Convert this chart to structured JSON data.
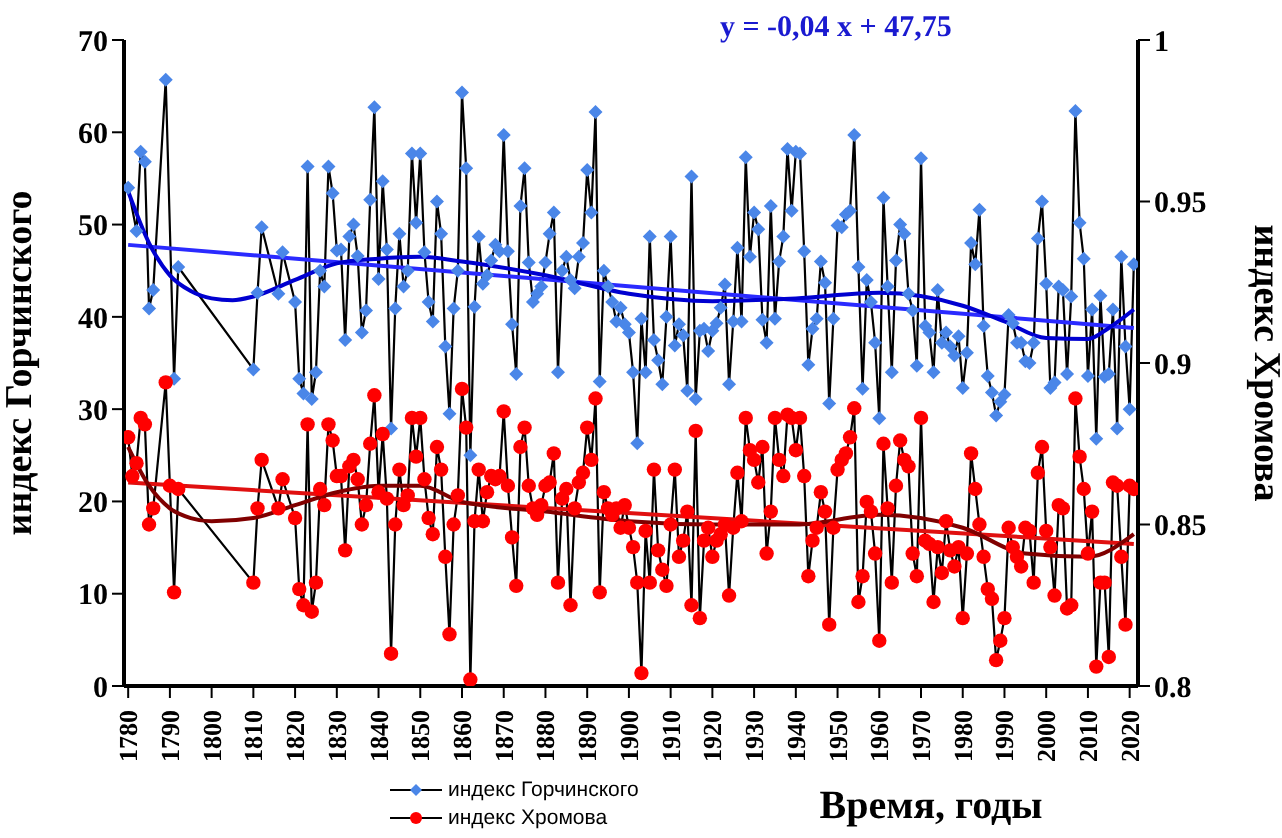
{
  "chart_data": {
    "type": "line",
    "xlabel": "Время, годы",
    "ylabel": "индекс Горчинского",
    "y2label": "индекс Хромова",
    "annotations": [
      "y = -0,04 x + 47,75"
    ],
    "legend": "bottom",
    "grid": false,
    "xlim": [
      1779,
      2022
    ],
    "xticks": [
      1780,
      1790,
      1800,
      1810,
      1820,
      1830,
      1840,
      1850,
      1860,
      1870,
      1880,
      1890,
      1900,
      1910,
      1920,
      1930,
      1940,
      1950,
      1960,
      1970,
      1980,
      1990,
      2000,
      2010,
      2020
    ],
    "ylim": [
      0,
      70
    ],
    "yticks": [
      0,
      10,
      20,
      30,
      40,
      50,
      60,
      70
    ],
    "y2lim": [
      0.8,
      1
    ],
    "y2ticks": [
      0.8,
      0.85,
      0.9,
      0.95,
      1
    ],
    "x": [
      1780,
      1781,
      1782,
      1783,
      1784,
      1785,
      1786,
      1789,
      1790,
      1791,
      1792,
      1810,
      1811,
      1812,
      1816,
      1817,
      1820,
      1821,
      1822,
      1823,
      1824,
      1825,
      1826,
      1827,
      1828,
      1829,
      1830,
      1831,
      1832,
      1833,
      1834,
      1835,
      1836,
      1837,
      1838,
      1839,
      1840,
      1841,
      1842,
      1843,
      1844,
      1845,
      1846,
      1847,
      1848,
      1849,
      1850,
      1851,
      1852,
      1853,
      1854,
      1855,
      1856,
      1857,
      1858,
      1859,
      1860,
      1861,
      1862,
      1863,
      1864,
      1865,
      1866,
      1867,
      1868,
      1869,
      1870,
      1871,
      1872,
      1873,
      1874,
      1875,
      1876,
      1877,
      1878,
      1879,
      1880,
      1881,
      1882,
      1883,
      1884,
      1885,
      1886,
      1887,
      1888,
      1889,
      1890,
      1891,
      1892,
      1893,
      1894,
      1895,
      1896,
      1897,
      1898,
      1899,
      1900,
      1901,
      1902,
      1903,
      1904,
      1905,
      1906,
      1907,
      1908,
      1909,
      1910,
      1911,
      1912,
      1913,
      1914,
      1915,
      1916,
      1917,
      1918,
      1919,
      1920,
      1921,
      1922,
      1923,
      1924,
      1925,
      1926,
      1927,
      1928,
      1929,
      1930,
      1931,
      1932,
      1933,
      1934,
      1935,
      1936,
      1937,
      1938,
      1939,
      1940,
      1941,
      1942,
      1943,
      1944,
      1945,
      1946,
      1947,
      1948,
      1949,
      1950,
      1951,
      1952,
      1953,
      1954,
      1955,
      1956,
      1957,
      1958,
      1959,
      1960,
      1961,
      1962,
      1963,
      1964,
      1965,
      1966,
      1967,
      1968,
      1969,
      1970,
      1971,
      1972,
      1973,
      1974,
      1975,
      1976,
      1977,
      1978,
      1979,
      1980,
      1981,
      1982,
      1983,
      1984,
      1985,
      1986,
      1987,
      1988,
      1989,
      1990,
      1991,
      1992,
      1993,
      1994,
      1995,
      1996,
      1997,
      1998,
      1999,
      2000,
      2001,
      2002,
      2003,
      2004,
      2005,
      2006,
      2007,
      2008,
      2009,
      2010,
      2011,
      2012,
      2013,
      2014,
      2015,
      2016,
      2017,
      2018,
      2019,
      2020,
      2021
    ],
    "series": [
      {
        "name": "индекс Горчинского",
        "color": "#4a86e8",
        "marker": "diamond",
        "values": [
          54,
          null,
          49.3,
          57.9,
          56.8,
          40.9,
          42.9,
          65.7,
          null,
          33.3,
          45.4,
          34.3,
          42.6,
          49.7,
          42.5,
          47,
          41.6,
          33.3,
          31.7,
          56.3,
          31.1,
          34,
          45,
          43.3,
          56.3,
          53.4,
          47.2,
          47.3,
          37.5,
          48.7,
          50,
          46.6,
          38.3,
          40.7,
          52.7,
          62.7,
          44.1,
          54.7,
          47.3,
          27.9,
          40.9,
          49,
          43.3,
          45,
          57.7,
          50.2,
          57.7,
          47,
          41.6,
          39.5,
          52.5,
          49,
          36.8,
          29.5,
          40.9,
          45,
          64.3,
          56.1,
          25,
          41.1,
          48.7,
          43.6,
          44.5,
          46.1,
          47.8,
          47.1,
          59.7,
          47.1,
          39.2,
          33.8,
          52,
          56.1,
          45.9,
          41.6,
          42.5,
          43.3,
          45.9,
          49,
          51.3,
          34,
          45,
          46.5,
          44,
          43.1,
          46.5,
          48,
          55.9,
          51.3,
          62.2,
          33,
          45,
          43.3,
          41.6,
          39.5,
          41,
          39.2,
          38.3,
          34,
          26.3,
          39.8,
          34,
          48.7,
          37.5,
          35.3,
          32.7,
          40,
          48.7,
          36.9,
          39.2,
          38,
          32,
          55.2,
          31.1,
          38.5,
          38.7,
          36.3,
          38.5,
          39.3,
          41,
          43.5,
          32.7,
          39.5,
          47.5,
          39.5,
          57.3,
          46.5,
          51.3,
          49.5,
          39.7,
          37.2,
          52,
          39.8,
          46,
          48.7,
          58.2,
          51.5,
          57.9,
          57.7,
          47.1,
          34.8,
          38.7,
          39.8,
          46,
          43.7,
          30.6,
          39.8,
          49.9,
          49.7,
          51.1,
          51.5,
          59.7,
          45.4,
          32.2,
          44,
          41.6,
          37.2,
          29,
          52.9,
          43.3,
          34,
          46.1,
          50,
          49,
          42.5,
          40.7,
          34.7,
          57.2,
          39,
          38.3,
          34,
          42.9,
          37.2,
          38.3,
          36.8,
          35.8,
          37.9,
          32.3,
          36.1,
          48,
          45.7,
          51.6,
          39,
          33.6,
          31.8,
          29.3,
          30.8,
          31.6,
          40.2,
          39.3,
          37.2,
          37.2,
          35.2,
          35,
          37.2,
          48.5,
          52.5,
          43.6,
          32.3,
          32.9,
          43.3,
          42.9,
          33.8,
          42.2,
          62.3,
          50.2,
          46.3,
          33.6,
          40.8,
          26.8,
          42.3,
          33.5,
          33.8,
          40.8,
          27.9,
          46.5,
          36.8,
          30,
          45.7
        ]
      },
      {
        "name": "индекс Хромова",
        "color": "#ff0000",
        "marker": "circle",
        "axis": "y2",
        "values": [
          0.877,
          0.865,
          0.869,
          0.883,
          0.881,
          0.85,
          0.855,
          0.894,
          0.862,
          0.829,
          0.861,
          0.832,
          0.855,
          0.87,
          0.855,
          0.864,
          0.852,
          0.83,
          0.825,
          0.881,
          0.823,
          0.832,
          0.861,
          0.856,
          0.881,
          0.876,
          0.865,
          0.865,
          0.842,
          0.868,
          0.87,
          0.864,
          0.85,
          0.856,
          0.875,
          0.89,
          0.86,
          0.878,
          0.858,
          0.81,
          0.85,
          0.867,
          0.856,
          0.859,
          0.883,
          0.871,
          0.883,
          0.864,
          0.852,
          0.847,
          0.874,
          0.867,
          0.84,
          0.816,
          0.85,
          0.859,
          0.892,
          0.88,
          0.802,
          0.851,
          0.867,
          0.851,
          0.86,
          0.865,
          0.864,
          0.865,
          0.885,
          0.862,
          0.846,
          0.831,
          0.874,
          0.88,
          0.862,
          0.855,
          0.853,
          0.856,
          0.862,
          0.863,
          0.872,
          0.832,
          0.858,
          0.861,
          0.825,
          0.855,
          0.863,
          0.866,
          0.88,
          0.87,
          0.889,
          0.829,
          0.86,
          0.855,
          0.853,
          0.855,
          0.849,
          0.856,
          0.849,
          0.843,
          0.832,
          0.804,
          0.848,
          0.832,
          0.867,
          0.842,
          0.836,
          0.831,
          0.85,
          0.867,
          0.84,
          0.845,
          0.854,
          0.825,
          0.879,
          0.821,
          0.845,
          0.849,
          0.84,
          0.845,
          0.847,
          0.85,
          0.828,
          0.849,
          0.866,
          0.851,
          0.883,
          0.873,
          0.87,
          0.863,
          0.874,
          0.841,
          0.854,
          0.883,
          0.87,
          0.865,
          0.884,
          0.883,
          0.873,
          0.883,
          0.865,
          0.834,
          0.845,
          0.849,
          0.86,
          0.854,
          0.819,
          0.849,
          0.867,
          0.87,
          0.872,
          0.877,
          0.886,
          0.826,
          0.834,
          0.857,
          0.854,
          0.841,
          0.814,
          0.875,
          0.855,
          0.832,
          0.862,
          0.876,
          0.87,
          0.868,
          0.841,
          0.834,
          0.883,
          0.845,
          0.844,
          0.826,
          0.843,
          0.835,
          0.851,
          0.842,
          0.837,
          0.843,
          0.821,
          0.841,
          0.872,
          0.861,
          0.85,
          0.84,
          0.83,
          0.827,
          0.808,
          0.814,
          0.821,
          0.849,
          0.843,
          0.84,
          0.837,
          0.849,
          0.848,
          0.832,
          0.866,
          0.874,
          0.848,
          0.843,
          0.828,
          0.856,
          0.855,
          0.824,
          0.825,
          0.889,
          0.871,
          0.861,
          0.841,
          0.854,
          0.806,
          0.832,
          0.832,
          0.809,
          0.863,
          0.862,
          0.84,
          0.819,
          0.862,
          0.861
        ]
      },
      {
        "type": "line",
        "color": "#2a2aff",
        "marker": "none",
        "x": [
          1780,
          2021
        ],
        "values": [
          47.8,
          38.8
        ]
      },
      {
        "type": "line",
        "color": "#0000d0",
        "marker": "none",
        "x": [
          1780,
          1785,
          1790,
          1795,
          1800,
          1805,
          1810,
          1820,
          1830,
          1840,
          1850,
          1860,
          1880,
          1900,
          1920,
          1940,
          1960,
          1980,
          1990,
          2000,
          2010,
          2015,
          2021
        ],
        "values": [
          53.6,
          48,
          44.5,
          42.8,
          42,
          41.8,
          42.2,
          44,
          45.8,
          46.3,
          46.5,
          46,
          44.5,
          42.5,
          41.7,
          42,
          42.6,
          41.2,
          39.5,
          37.7,
          37.6,
          38.8,
          40.8
        ]
      },
      {
        "type": "line",
        "color": "#e01010",
        "marker": "none",
        "axis": "y2",
        "x": [
          1780,
          2021
        ],
        "values": [
          0.863,
          0.844
        ]
      },
      {
        "type": "line",
        "color": "#800000",
        "marker": "none",
        "axis": "y2",
        "x": [
          1780,
          1785,
          1790,
          1795,
          1800,
          1810,
          1820,
          1830,
          1840,
          1850,
          1860,
          1880,
          1900,
          1920,
          1940,
          1960,
          1980,
          1995,
          2010,
          2021
        ],
        "values": [
          0.874,
          0.862,
          0.855,
          0.852,
          0.851,
          0.852,
          0.856,
          0.86,
          0.862,
          0.862,
          0.857,
          0.854,
          0.851,
          0.85,
          0.85,
          0.853,
          0.849,
          0.841,
          0.84,
          0.847
        ]
      }
    ]
  }
}
